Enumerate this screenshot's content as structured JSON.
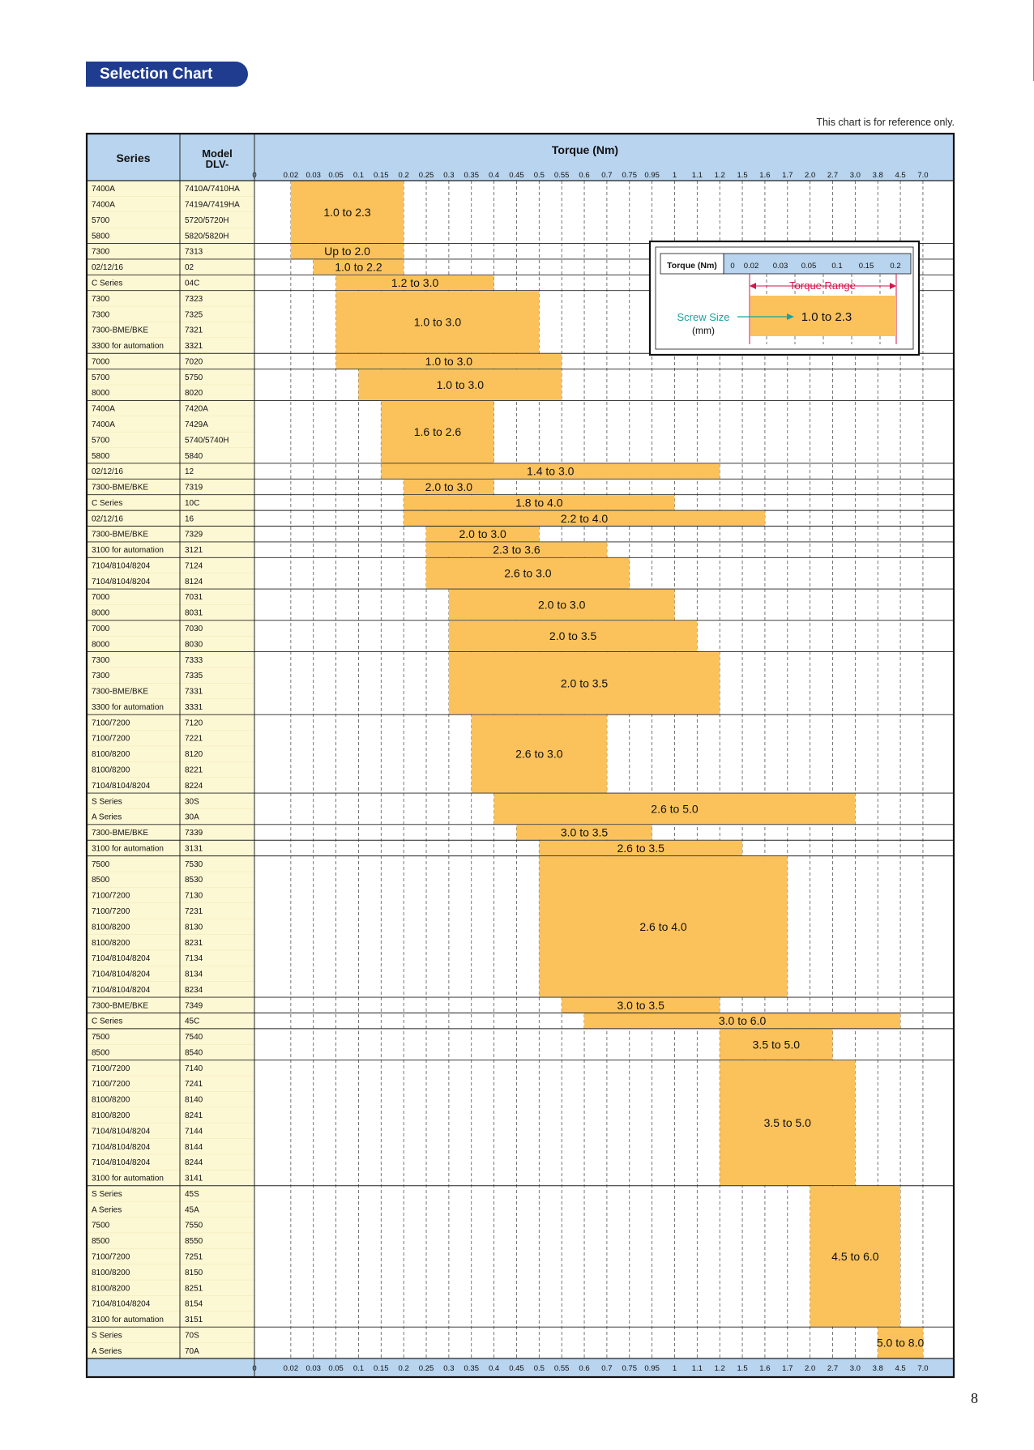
{
  "header": {
    "title": "Selection Chart",
    "note": "This chart is for reference only.",
    "page_number": "8"
  },
  "table": {
    "col_series": "Series",
    "col_model_line1": "Model",
    "col_model_line2": "DLV-",
    "torque_header": "Torque (Nm)",
    "axis_ticks": [
      "0",
      "0.02",
      "0.03",
      "0.05",
      "0.1",
      "0.15",
      "0.2",
      "0.25",
      "0.3",
      "0.35",
      "0.4",
      "0.45",
      "0.5",
      "0.55",
      "0.6",
      "0.7",
      "0.75",
      "0.95",
      "1",
      "1.1",
      "1.2",
      "1.5",
      "1.6",
      "1.7",
      "2.0",
      "2.7",
      "3.0",
      "3.8",
      "4.5",
      "7.0"
    ]
  },
  "legend": {
    "header_label": "Torque (Nm)",
    "ticks": [
      "0",
      "0.02",
      "0.03",
      "0.05",
      "0.1",
      "0.15",
      "0.2"
    ],
    "range_label": "Torque Range",
    "screw_label": "Screw Size",
    "screw_unit": "(mm)",
    "sample_value": "1.0 to 2.3"
  },
  "colors": {
    "header_bg": "#b8d4ef",
    "label_bg": "#fdf8d4",
    "bar": "#fbc25c",
    "pill": "#1f3c8f",
    "range_red": "#d4144c",
    "screw_teal": "#1aa39e"
  },
  "chart_data": {
    "type": "table",
    "title": "Torque (Nm)",
    "groups": [
      {
        "rows": [
          [
            "7400A",
            "7410A/7410HA"
          ],
          [
            "7400A",
            "7419A/7419HA"
          ],
          [
            "5700",
            "5720/5720H"
          ],
          [
            "5800",
            "5820/5820H"
          ]
        ],
        "start": 1,
        "end": 6,
        "label": "1.0 to 2.3"
      },
      {
        "rows": [
          [
            "7300",
            "7313"
          ]
        ],
        "start": 1,
        "end": 6,
        "label": "Up to 2.0"
      },
      {
        "rows": [
          [
            "02/12/16",
            "02"
          ]
        ],
        "start": 2,
        "end": 6,
        "label": "1.0 to 2.2"
      },
      {
        "rows": [
          [
            "C Series",
            "04C"
          ]
        ],
        "start": 3,
        "end": 10,
        "label": "1.2 to 3.0"
      },
      {
        "rows": [
          [
            "7300",
            "7323"
          ],
          [
            "7300",
            "7325"
          ],
          [
            "7300-BME/BKE",
            "7321"
          ],
          [
            "3300 for automation",
            "3321"
          ]
        ],
        "start": 3,
        "end": 12,
        "label": "1.0 to 3.0"
      },
      {
        "rows": [
          [
            "7000",
            "7020"
          ]
        ],
        "start": 3,
        "end": 13,
        "label": "1.0 to 3.0"
      },
      {
        "rows": [
          [
            "5700",
            "5750"
          ],
          [
            "8000",
            "8020"
          ]
        ],
        "start": 4,
        "end": 13,
        "label": "1.0 to 3.0"
      },
      {
        "rows": [
          [
            "7400A",
            "7420A"
          ],
          [
            "7400A",
            "7429A"
          ],
          [
            "5700",
            "5740/5740H"
          ],
          [
            "5800",
            "5840"
          ]
        ],
        "start": 5,
        "end": 10,
        "label": "1.6 to 2.6"
      },
      {
        "rows": [
          [
            "02/12/16",
            "12"
          ]
        ],
        "start": 5,
        "end": 20,
        "label": "1.4 to 3.0"
      },
      {
        "rows": [
          [
            "7300-BME/BKE",
            "7319"
          ]
        ],
        "start": 6,
        "end": 10,
        "label": "2.0 to 3.0"
      },
      {
        "rows": [
          [
            "C Series",
            "10C"
          ]
        ],
        "start": 6,
        "end": 18,
        "label": "1.8 to 4.0"
      },
      {
        "rows": [
          [
            "02/12/16",
            "16"
          ]
        ],
        "start": 6,
        "end": 22,
        "label": "2.2 to 4.0"
      },
      {
        "rows": [
          [
            "7300-BME/BKE",
            "7329"
          ]
        ],
        "start": 7,
        "end": 12,
        "label": "2.0 to 3.0"
      },
      {
        "rows": [
          [
            "3100 for automation",
            "3121"
          ]
        ],
        "start": 7,
        "end": 15,
        "label": "2.3 to 3.6"
      },
      {
        "rows": [
          [
            "7104/8104/8204",
            "7124"
          ],
          [
            "7104/8104/8204",
            "8124"
          ]
        ],
        "start": 7,
        "end": 16,
        "label": "2.6 to 3.0"
      },
      {
        "rows": [
          [
            "7000",
            "7031"
          ],
          [
            "8000",
            "8031"
          ]
        ],
        "start": 8,
        "end": 18,
        "label": "2.0 to 3.0"
      },
      {
        "rows": [
          [
            "7000",
            "7030"
          ],
          [
            "8000",
            "8030"
          ]
        ],
        "start": 8,
        "end": 19,
        "label": "2.0 to 3.5"
      },
      {
        "rows": [
          [
            "7300",
            "7333"
          ],
          [
            "7300",
            "7335"
          ],
          [
            "7300-BME/BKE",
            "7331"
          ],
          [
            "3300 for automation",
            "3331"
          ]
        ],
        "start": 8,
        "end": 20,
        "label": "2.0 to 3.5"
      },
      {
        "rows": [
          [
            "7100/7200",
            "7120"
          ],
          [
            "7100/7200",
            "7221"
          ],
          [
            "8100/8200",
            "8120"
          ],
          [
            "8100/8200",
            "8221"
          ],
          [
            "7104/8104/8204",
            "8224"
          ]
        ],
        "start": 9,
        "end": 15,
        "label": "2.6 to 3.0"
      },
      {
        "rows": [
          [
            "S Series",
            "30S"
          ],
          [
            "A Series",
            "30A"
          ]
        ],
        "start": 10,
        "end": 26,
        "label": "2.6 to 5.0"
      },
      {
        "rows": [
          [
            "7300-BME/BKE",
            "7339"
          ]
        ],
        "start": 11,
        "end": 17,
        "label": "3.0 to 3.5"
      },
      {
        "rows": [
          [
            "3100 for automation",
            "3131"
          ]
        ],
        "start": 12,
        "end": 21,
        "label": "2.6 to 3.5"
      },
      {
        "rows": [
          [
            "7500",
            "7530"
          ],
          [
            "8500",
            "8530"
          ],
          [
            "7100/7200",
            "7130"
          ],
          [
            "7100/7200",
            "7231"
          ],
          [
            "8100/8200",
            "8130"
          ],
          [
            "8100/8200",
            "8231"
          ],
          [
            "7104/8104/8204",
            "7134"
          ],
          [
            "7104/8104/8204",
            "8134"
          ],
          [
            "7104/8104/8204",
            "8234"
          ]
        ],
        "start": 12,
        "end": 23,
        "label": "2.6 to 4.0"
      },
      {
        "rows": [
          [
            "7300-BME/BKE",
            "7349"
          ]
        ],
        "start": 13,
        "end": 20,
        "label": "3.0 to 3.5"
      },
      {
        "rows": [
          [
            "C Series",
            "45C"
          ]
        ],
        "start": 14,
        "end": 28,
        "label": "3.0 to 6.0"
      },
      {
        "rows": [
          [
            "7500",
            "7540"
          ],
          [
            "8500",
            "8540"
          ]
        ],
        "start": 20,
        "end": 25,
        "label": "3.5 to 5.0"
      },
      {
        "rows": [
          [
            "7100/7200",
            "7140"
          ],
          [
            "7100/7200",
            "7241"
          ],
          [
            "8100/8200",
            "8140"
          ],
          [
            "8100/8200",
            "8241"
          ],
          [
            "7104/8104/8204",
            "7144"
          ],
          [
            "7104/8104/8204",
            "8144"
          ],
          [
            "7104/8104/8204",
            "8244"
          ],
          [
            "3100 for automation",
            "3141"
          ]
        ],
        "start": 20,
        "end": 26,
        "label": "3.5 to 5.0"
      },
      {
        "rows": [
          [
            "S Series",
            "45S"
          ],
          [
            "A Series",
            "45A"
          ],
          [
            "7500",
            "7550"
          ],
          [
            "8500",
            "8550"
          ],
          [
            "7100/7200",
            "7251"
          ],
          [
            "8100/8200",
            "8150"
          ],
          [
            "8100/8200",
            "8251"
          ],
          [
            "7104/8104/8204",
            "8154"
          ],
          [
            "3100 for automation",
            "3151"
          ]
        ],
        "start": 24,
        "end": 28,
        "label": "4.5 to 6.0"
      },
      {
        "rows": [
          [
            "S Series",
            "70S"
          ],
          [
            "A Series",
            "70A"
          ]
        ],
        "start": 27,
        "end": 29,
        "label": "5.0 to 8.0"
      }
    ]
  }
}
